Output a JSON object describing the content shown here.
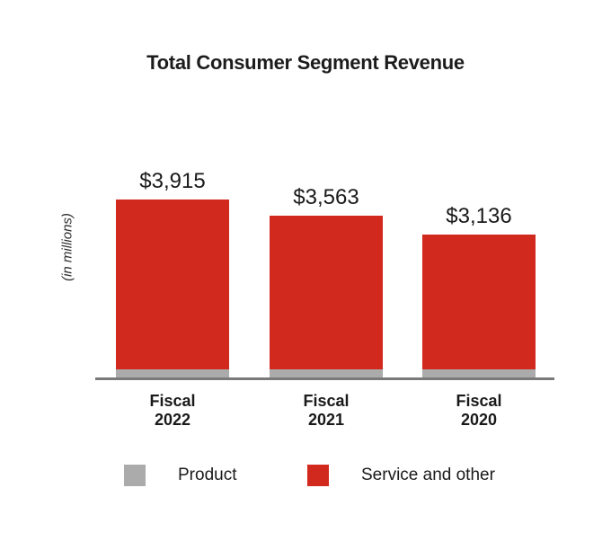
{
  "chart_data": {
    "type": "bar",
    "stacked": true,
    "title": "Total Consumer Segment Revenue",
    "ylabel": "(in millions)",
    "xlabel": "",
    "categories": [
      "Fiscal 2022",
      "Fiscal 2021",
      "Fiscal 2020"
    ],
    "totals": [
      3915,
      3563,
      3136
    ],
    "total_labels": [
      "$3,915",
      "$3,563",
      "$3,136"
    ],
    "series": [
      {
        "name": "Product",
        "color": "#ababab",
        "values": [
          170,
          170,
          170
        ],
        "note": "segment is not numerically labeled on the chart; value estimated from segment height"
      },
      {
        "name": "Service and other",
        "color": "#d2291f",
        "values": [
          3745,
          3393,
          2966
        ],
        "note": "derived as labeled total minus estimated Product segment"
      }
    ],
    "value_labels_shown": true,
    "grid": false,
    "legend_position": "bottom",
    "axis_line_color": "#7a7a7a"
  },
  "legend": {
    "items": [
      {
        "label": "Product",
        "color": "#ababab"
      },
      {
        "label": "Service and other",
        "color": "#d2291f"
      }
    ]
  }
}
